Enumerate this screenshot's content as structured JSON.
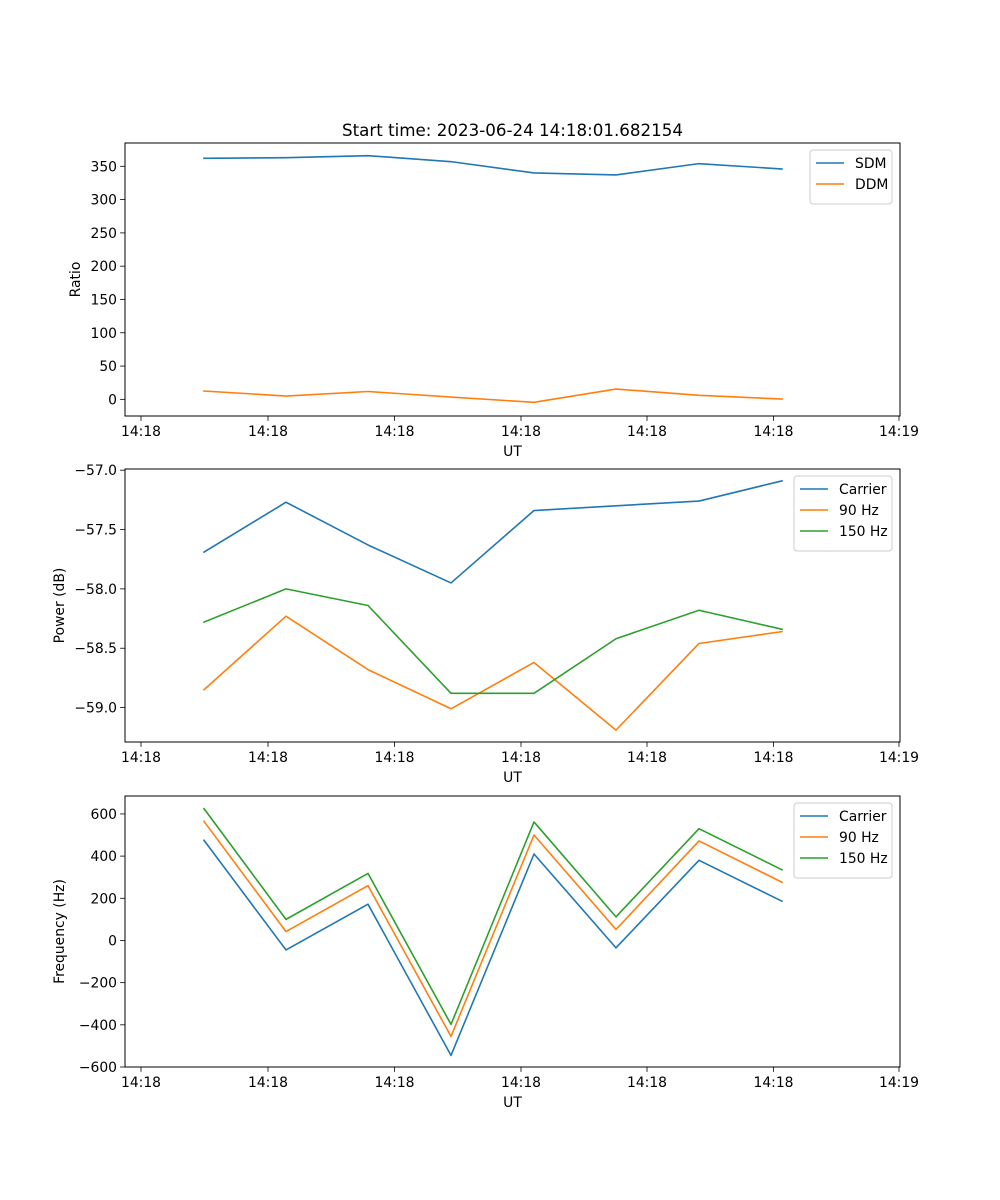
{
  "figure": {
    "title": "Start time: 2023-06-24 14:18:01.682154"
  },
  "chart_data": [
    {
      "type": "line",
      "title": "Start time: 2023-06-24 14:18:01.682154",
      "xlabel": "UT",
      "ylabel": "Ratio",
      "x": [
        1,
        2,
        3,
        4,
        5,
        6,
        7,
        8
      ],
      "x_tick_labels": [
        "14:18",
        "14:18",
        "14:18",
        "14:18",
        "14:18",
        "14:18",
        "14:19"
      ],
      "ylim": [
        -25,
        385
      ],
      "y_ticks": [
        0,
        50,
        100,
        150,
        200,
        250,
        300,
        350
      ],
      "grid": false,
      "legend_placement": "top-right",
      "series": [
        {
          "name": "SDM",
          "color": "#1f77b4",
          "values": [
            362,
            363,
            366,
            357,
            340,
            337,
            354,
            346
          ]
        },
        {
          "name": "DDM",
          "color": "#ff7f0e",
          "values": [
            12.5,
            5,
            11.8,
            3.5,
            -4.5,
            15.5,
            6,
            0.5
          ]
        }
      ]
    },
    {
      "type": "line",
      "title": "",
      "xlabel": "UT",
      "ylabel": "Power (dB)",
      "x": [
        1,
        2,
        3,
        4,
        5,
        6,
        7,
        8
      ],
      "x_tick_labels": [
        "14:18",
        "14:18",
        "14:18",
        "14:18",
        "14:18",
        "14:18",
        "14:19"
      ],
      "ylim": [
        -59.29,
        -56.99
      ],
      "y_ticks": [
        -59.0,
        -58.5,
        -58.0,
        -57.5,
        -57.0
      ],
      "y_tick_labels": [
        "−59.0",
        "−58.5",
        "−58.0",
        "−57.5",
        "−57.0"
      ],
      "grid": false,
      "legend_placement": "top-right",
      "series": [
        {
          "name": "Carrier",
          "color": "#1f77b4",
          "values": [
            -57.69,
            -57.27,
            -57.63,
            -57.95,
            -57.34,
            -57.3,
            -57.26,
            -57.09
          ]
        },
        {
          "name": "90 Hz",
          "color": "#ff7f0e",
          "values": [
            -58.85,
            -58.23,
            -58.68,
            -59.01,
            -58.62,
            -59.19,
            -58.46,
            -58.36
          ]
        },
        {
          "name": "150 Hz",
          "color": "#2ca02c",
          "values": [
            -58.28,
            -58.0,
            -58.14,
            -58.88,
            -58.88,
            -58.42,
            -58.18,
            -58.34
          ]
        }
      ]
    },
    {
      "type": "line",
      "title": "",
      "xlabel": "UT",
      "ylabel": "Frequency (Hz)",
      "x": [
        1,
        2,
        3,
        4,
        5,
        6,
        7,
        8
      ],
      "x_tick_labels": [
        "14:18",
        "14:18",
        "14:18",
        "14:18",
        "14:18",
        "14:18",
        "14:19"
      ],
      "ylim": [
        -600,
        685
      ],
      "y_ticks": [
        -600,
        -400,
        -200,
        0,
        200,
        400,
        600
      ],
      "y_tick_labels": [
        "−600",
        "−400",
        "−200",
        "0",
        "200",
        "400",
        "600"
      ],
      "grid": false,
      "legend_placement": "top-right",
      "series": [
        {
          "name": "Carrier",
          "color": "#1f77b4",
          "values": [
            475,
            -45,
            172,
            -545,
            410,
            -35,
            380,
            186
          ]
        },
        {
          "name": "90 Hz",
          "color": "#ff7f0e",
          "values": [
            565,
            42,
            260,
            -455,
            500,
            52,
            472,
            276
          ]
        },
        {
          "name": "150 Hz",
          "color": "#2ca02c",
          "values": [
            625,
            100,
            318,
            -398,
            562,
            112,
            530,
            335
          ]
        }
      ]
    }
  ]
}
